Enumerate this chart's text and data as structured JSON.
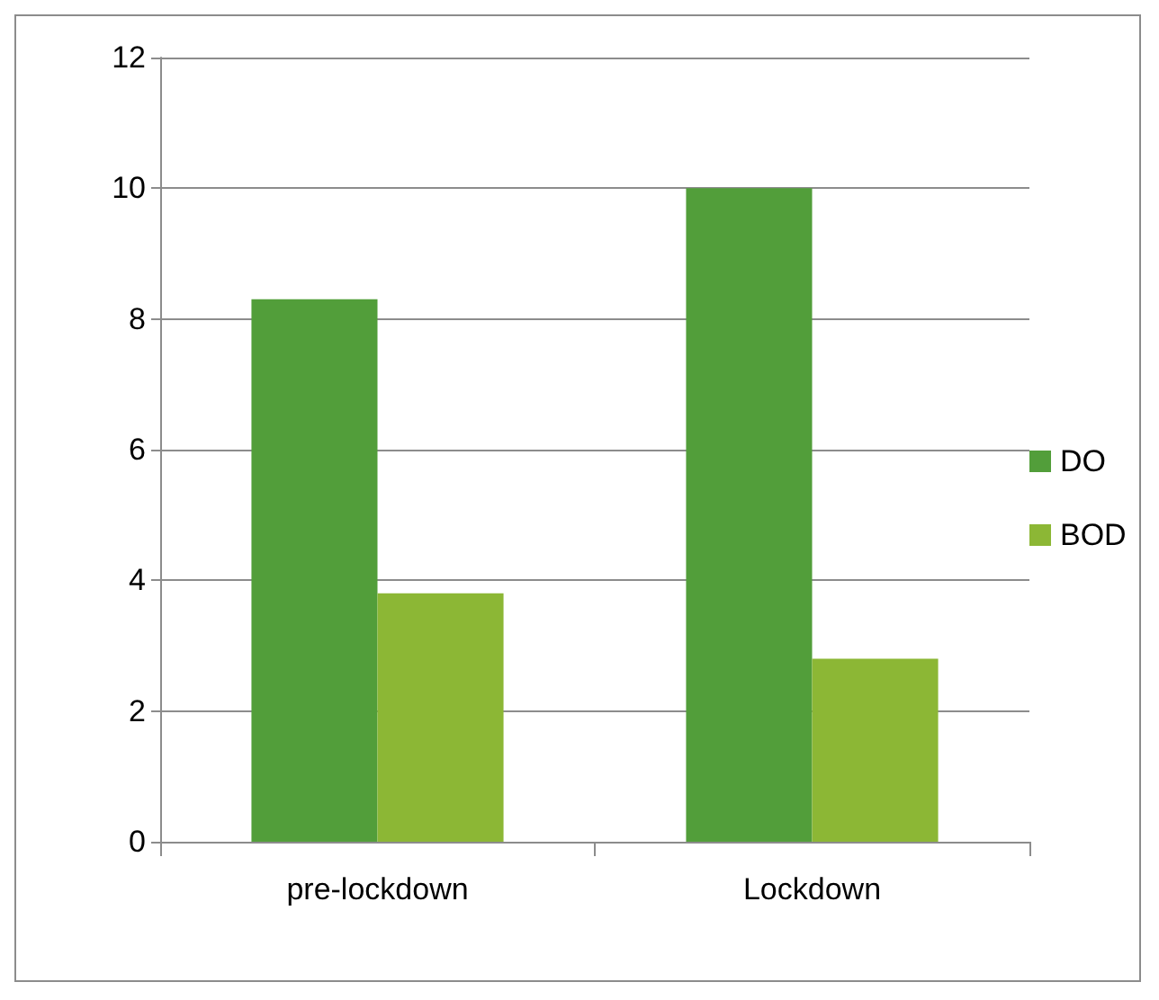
{
  "chart_data": {
    "type": "bar",
    "categories": [
      "pre-lockdown",
      "Lockdown"
    ],
    "series": [
      {
        "name": "DO",
        "color": "#529e3a",
        "values": [
          8.3,
          10.0
        ]
      },
      {
        "name": "BOD",
        "color": "#8cb735",
        "values": [
          3.8,
          2.8
        ]
      }
    ],
    "ylim": [
      0,
      12
    ],
    "yticks": [
      0,
      2,
      4,
      6,
      8,
      10,
      12
    ],
    "grid": "y",
    "legend": "right"
  }
}
